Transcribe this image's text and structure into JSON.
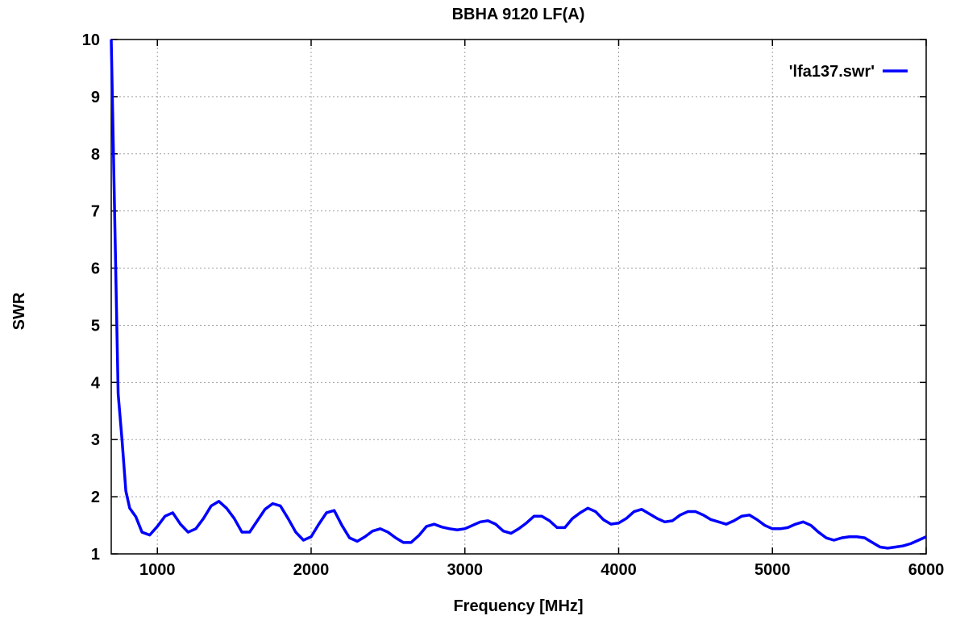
{
  "chart_data": {
    "type": "line",
    "title": "BBHA 9120 LF(A)",
    "xlabel": "Frequency [MHz]",
    "ylabel": "SWR",
    "xlim": [
      700,
      6000
    ],
    "ylim": [
      1,
      10
    ],
    "xticks": [
      1000,
      2000,
      3000,
      4000,
      5000,
      6000
    ],
    "yticks": [
      1,
      2,
      3,
      4,
      5,
      6,
      7,
      8,
      9,
      10
    ],
    "grid": true,
    "legend_position": "top-right",
    "series_color": "#0000ff",
    "series": [
      {
        "name": "'lfa137.swr'",
        "x": [
          700,
          745,
          770,
          795,
          820,
          860,
          900,
          950,
          1000,
          1050,
          1100,
          1150,
          1200,
          1250,
          1300,
          1350,
          1400,
          1450,
          1500,
          1550,
          1600,
          1650,
          1700,
          1750,
          1800,
          1850,
          1900,
          1950,
          2000,
          2050,
          2100,
          2150,
          2200,
          2250,
          2300,
          2350,
          2400,
          2450,
          2500,
          2550,
          2600,
          2650,
          2700,
          2750,
          2800,
          2850,
          2900,
          2950,
          3000,
          3050,
          3100,
          3150,
          3200,
          3250,
          3300,
          3350,
          3400,
          3450,
          3500,
          3550,
          3600,
          3650,
          3700,
          3750,
          3800,
          3850,
          3900,
          3950,
          4000,
          4050,
          4100,
          4150,
          4200,
          4250,
          4300,
          4350,
          4400,
          4450,
          4500,
          4550,
          4600,
          4650,
          4700,
          4750,
          4800,
          4850,
          4900,
          4950,
          5000,
          5050,
          5100,
          5150,
          5200,
          5250,
          5300,
          5350,
          5400,
          5450,
          5500,
          5550,
          5600,
          5650,
          5700,
          5750,
          5800,
          5850,
          5900,
          5950,
          6000
        ],
        "y": [
          10.0,
          3.8,
          3.0,
          2.1,
          1.8,
          1.65,
          1.38,
          1.33,
          1.48,
          1.66,
          1.72,
          1.52,
          1.38,
          1.44,
          1.62,
          1.84,
          1.92,
          1.8,
          1.62,
          1.38,
          1.38,
          1.58,
          1.78,
          1.88,
          1.84,
          1.62,
          1.38,
          1.24,
          1.3,
          1.52,
          1.72,
          1.76,
          1.5,
          1.28,
          1.22,
          1.3,
          1.4,
          1.44,
          1.38,
          1.28,
          1.2,
          1.2,
          1.32,
          1.48,
          1.52,
          1.47,
          1.44,
          1.42,
          1.44,
          1.5,
          1.56,
          1.58,
          1.52,
          1.4,
          1.36,
          1.44,
          1.54,
          1.66,
          1.66,
          1.58,
          1.46,
          1.46,
          1.62,
          1.72,
          1.8,
          1.74,
          1.6,
          1.52,
          1.54,
          1.62,
          1.74,
          1.78,
          1.7,
          1.62,
          1.56,
          1.58,
          1.68,
          1.74,
          1.74,
          1.68,
          1.6,
          1.56,
          1.52,
          1.58,
          1.66,
          1.68,
          1.6,
          1.5,
          1.44,
          1.44,
          1.46,
          1.52,
          1.56,
          1.5,
          1.38,
          1.28,
          1.24,
          1.28,
          1.3,
          1.3,
          1.28,
          1.2,
          1.12,
          1.1,
          1.12,
          1.14,
          1.18,
          1.24,
          1.3
        ]
      }
    ]
  }
}
